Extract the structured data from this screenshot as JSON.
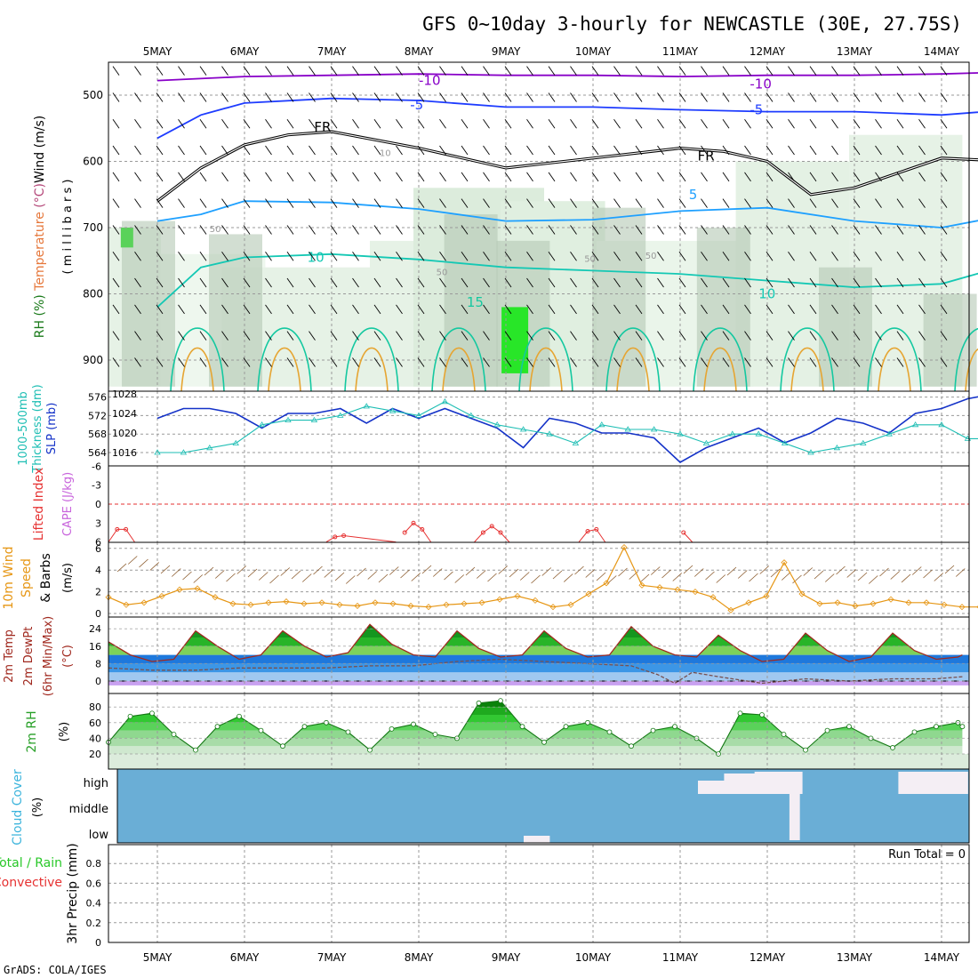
{
  "header": {
    "title": "GFS 0~10day 3-hourly for NEWCASTLE (30E, 27.75S)",
    "credit": "GrADS: COLA/IGES"
  },
  "dates": [
    "5MAY",
    "6MAY",
    "7MAY",
    "8MAY",
    "9MAY",
    "10MAY",
    "11MAY",
    "12MAY",
    "13MAY",
    "14MAY"
  ],
  "chart_data": [
    {
      "type": "heatmap",
      "panel": "cross-section",
      "ylabel_parts": [
        "RH (%)",
        "Temperature (°C)",
        "Wind (m/s)",
        "(millibars)"
      ],
      "yticks": [
        500,
        600,
        700,
        800,
        900
      ],
      "ylim": [
        940,
        450
      ],
      "contour_labels": [
        "-10",
        "-10",
        "-5",
        "-5",
        "FR",
        "FR",
        "5",
        "10",
        "15",
        "10",
        "10",
        "50",
        "50",
        "50",
        "50"
      ],
      "isotherms": [
        {
          "name": "-10",
          "color": "#8800c8",
          "x": [
            0,
            1,
            2,
            3,
            4,
            5,
            6,
            7,
            8,
            9,
            9.8
          ],
          "y": [
            478,
            472,
            470,
            468,
            470,
            470,
            472,
            470,
            470,
            468,
            465
          ]
        },
        {
          "name": "-5",
          "color": "#1e3cff",
          "x": [
            0,
            0.5,
            1,
            2,
            3,
            4,
            5,
            6,
            7,
            8,
            9,
            9.8
          ],
          "y": [
            565,
            530,
            512,
            505,
            508,
            518,
            518,
            522,
            525,
            525,
            530,
            522
          ]
        },
        {
          "name": "FR",
          "color": "#000000",
          "x": [
            0,
            0.5,
            1,
            1.5,
            2,
            3,
            4,
            5,
            6,
            6.5,
            7,
            7.5,
            8,
            9,
            9.8
          ],
          "y": [
            660,
            610,
            575,
            560,
            555,
            580,
            610,
            595,
            580,
            585,
            600,
            650,
            640,
            595,
            600
          ]
        },
        {
          "name": "5",
          "color": "#1ea0ff",
          "x": [
            0,
            0.5,
            1,
            2,
            3,
            4,
            5,
            6,
            7,
            8,
            9,
            9.8
          ],
          "y": [
            690,
            680,
            660,
            662,
            672,
            690,
            688,
            675,
            670,
            690,
            700,
            680
          ]
        },
        {
          "name": "10",
          "color": "#14c8b4",
          "x": [
            0,
            0.5,
            1,
            2,
            3,
            4,
            5,
            6,
            7,
            8,
            9,
            9.8
          ],
          "y": [
            820,
            760,
            745,
            740,
            748,
            760,
            765,
            770,
            780,
            790,
            785,
            755
          ]
        }
      ]
    },
    {
      "type": "line",
      "panel": "pressure",
      "ylabel_parts": [
        "1000-500mb",
        "Thickness (dm)",
        "SLP (mb)"
      ],
      "left_ticks": [
        564,
        568,
        572,
        576
      ],
      "right_ticks": [
        1016,
        1020,
        1024,
        1028
      ],
      "series": [
        {
          "name": "SLP",
          "color": "#1432c8",
          "x": [
            0,
            0.3,
            0.6,
            0.9,
            1.2,
            1.5,
            1.8,
            2.1,
            2.4,
            2.7,
            3.0,
            3.3,
            3.6,
            3.9,
            4.2,
            4.5,
            4.8,
            5.1,
            5.4,
            5.7,
            6.0,
            6.3,
            6.6,
            6.9,
            7.2,
            7.5,
            7.8,
            8.1,
            8.4,
            8.7,
            9.0,
            9.3,
            9.6,
            9.8
          ],
          "y": [
            1023,
            1025,
            1025,
            1024,
            1021,
            1024,
            1024,
            1025,
            1022,
            1025,
            1023,
            1025,
            1023,
            1021,
            1017,
            1023,
            1022,
            1020,
            1020,
            1019,
            1014,
            1017,
            1019,
            1021,
            1018,
            1020,
            1023,
            1022,
            1020,
            1024,
            1025,
            1027,
            1028,
            1028
          ]
        },
        {
          "name": "1000-500mb Thickness",
          "color": "#1ebeb4",
          "x": [
            0,
            0.3,
            0.6,
            0.9,
            1.2,
            1.5,
            1.8,
            2.1,
            2.4,
            2.7,
            3.0,
            3.3,
            3.6,
            3.9,
            4.2,
            4.5,
            4.8,
            5.1,
            5.4,
            5.7,
            6.0,
            6.3,
            6.6,
            6.9,
            7.2,
            7.5,
            7.8,
            8.1,
            8.4,
            8.7,
            9.0,
            9.3,
            9.6,
            9.8
          ],
          "y": [
            564,
            564,
            565,
            566,
            570,
            571,
            571,
            572,
            574,
            573,
            572,
            575,
            572,
            570,
            569,
            568,
            566,
            570,
            569,
            569,
            568,
            566,
            568,
            568,
            566,
            564,
            565,
            566,
            568,
            570,
            570,
            567,
            567,
            567
          ]
        }
      ]
    },
    {
      "type": "line",
      "panel": "cape-li",
      "ylabel_parts": [
        "Lifted Index",
        "CAPE (J/kg)"
      ],
      "left_ticks": [
        "-6",
        "-3",
        "0",
        "3",
        "6"
      ],
      "ylim": [
        -6,
        6
      ],
      "series": [
        {
          "name": "Lifted Index",
          "color": "#e63232",
          "x": [
            0,
            0.1,
            0.2,
            0.3,
            2.5,
            2.6,
            2.7,
            3.3,
            3.4,
            3.5,
            3.6,
            3.7,
            4.2,
            4.3,
            4.4,
            4.5,
            4.6,
            5.4,
            5.5,
            5.6,
            5.7,
            6.6,
            6.7
          ],
          "y": [
            6,
            4,
            4,
            6,
            6,
            5.2,
            5,
            6,
            4.5,
            3,
            4,
            6,
            6,
            4.5,
            3.5,
            4.5,
            6,
            6,
            4.3,
            4,
            6,
            4.5,
            6
          ]
        }
      ]
    },
    {
      "type": "line",
      "panel": "wind10m",
      "ylabel_parts": [
        "10m Wind",
        "Speed",
        "& Barbs",
        "(m/s)"
      ],
      "left_ticks": [
        0,
        2,
        4,
        6
      ],
      "ylim": [
        0,
        6.5
      ],
      "series": [
        {
          "name": "10m Wind Speed",
          "color": "#e69614",
          "x": [
            0,
            0.2,
            0.4,
            0.6,
            0.8,
            1.0,
            1.2,
            1.4,
            1.6,
            1.8,
            2.0,
            2.2,
            2.4,
            2.6,
            2.8,
            3.0,
            3.2,
            3.4,
            3.6,
            3.8,
            4.0,
            4.2,
            4.4,
            4.6,
            4.8,
            5.0,
            5.2,
            5.4,
            5.6,
            5.8,
            6.0,
            6.2,
            6.4,
            6.6,
            6.8,
            7.0,
            7.2,
            7.4,
            7.6,
            7.8,
            8.0,
            8.2,
            8.4,
            8.6,
            8.8,
            9.0,
            9.2,
            9.4,
            9.6,
            9.8
          ],
          "y": [
            1.5,
            0.8,
            1.0,
            1.6,
            2.2,
            2.3,
            1.5,
            0.9,
            0.8,
            1.0,
            1.1,
            0.9,
            1.0,
            0.8,
            0.7,
            1.0,
            0.9,
            0.7,
            0.6,
            0.8,
            0.9,
            1.0,
            1.3,
            1.6,
            1.2,
            0.6,
            0.8,
            1.8,
            2.8,
            6.1,
            2.6,
            2.4,
            2.2,
            2.0,
            1.5,
            0.3,
            1.0,
            1.6,
            4.7,
            1.8,
            0.9,
            1.0,
            0.7,
            0.9,
            1.3,
            1.0,
            1.0,
            0.8,
            0.6,
            0.6
          ]
        }
      ]
    },
    {
      "type": "area",
      "panel": "temperature",
      "ylabel_parts": [
        "2m Temp",
        "2m DewPt",
        "(6hr Min/Max)",
        "(°C)"
      ],
      "left_ticks": [
        0,
        8,
        16,
        24
      ],
      "ylim": [
        -2,
        28
      ],
      "series": [
        {
          "name": "2m Temp",
          "x": [
            0,
            0.25,
            0.5,
            0.75,
            1.0,
            1.25,
            1.5,
            1.75,
            2.0,
            2.25,
            2.5,
            2.75,
            3.0,
            3.25,
            3.5,
            3.75,
            4.0,
            4.25,
            4.5,
            4.75,
            5.0,
            5.25,
            5.5,
            5.75,
            6.0,
            6.25,
            6.5,
            6.75,
            7.0,
            7.25,
            7.5,
            7.75,
            8.0,
            8.25,
            8.5,
            8.75,
            9.0,
            9.25,
            9.5,
            9.75,
            9.8
          ],
          "y": [
            18,
            12,
            9,
            10,
            23,
            16,
            10,
            12,
            23,
            16,
            11,
            13,
            26,
            17,
            12,
            11,
            23,
            15,
            11,
            12,
            23,
            15,
            11,
            12,
            25,
            16,
            12,
            11,
            21,
            14,
            9,
            10,
            22,
            14,
            9,
            11,
            22,
            14,
            10,
            11,
            12
          ]
        },
        {
          "name": "2m DewPt",
          "x": [
            0,
            0.5,
            1,
            1.5,
            2,
            2.5,
            3,
            3.5,
            4,
            4.5,
            5,
            5.5,
            6,
            6.3,
            6.5,
            6.7,
            7,
            7.5,
            8,
            8.5,
            9,
            9.5,
            9.8
          ],
          "y": [
            6,
            5,
            5,
            6,
            6,
            6,
            7,
            7,
            9,
            10,
            9,
            8,
            7,
            3,
            -1,
            4,
            2,
            -1,
            1,
            0,
            1,
            1,
            2
          ]
        }
      ]
    },
    {
      "type": "area",
      "panel": "relative-humidity",
      "ylabel_parts": [
        "2m RH",
        "(%)"
      ],
      "left_ticks": [
        20,
        40,
        60,
        80
      ],
      "ylim": [
        10,
        95
      ],
      "series": [
        {
          "name": "2m RH",
          "x": [
            0,
            0.25,
            0.5,
            0.75,
            1.0,
            1.25,
            1.5,
            1.75,
            2.0,
            2.25,
            2.5,
            2.75,
            3.0,
            3.25,
            3.5,
            3.75,
            4.0,
            4.25,
            4.5,
            4.75,
            5.0,
            5.25,
            5.5,
            5.75,
            6.0,
            6.25,
            6.5,
            6.75,
            7.0,
            7.25,
            7.5,
            7.75,
            8.0,
            8.25,
            8.5,
            8.75,
            9.0,
            9.25,
            9.5,
            9.75,
            9.8
          ],
          "y": [
            35,
            68,
            72,
            45,
            25,
            55,
            68,
            50,
            30,
            55,
            60,
            48,
            25,
            52,
            58,
            45,
            40,
            85,
            88,
            55,
            35,
            55,
            60,
            48,
            30,
            50,
            55,
            40,
            20,
            72,
            70,
            45,
            25,
            50,
            55,
            40,
            28,
            48,
            55,
            60,
            55
          ]
        }
      ]
    },
    {
      "type": "bar",
      "panel": "cloud-cover",
      "ylabel_parts": [
        "Cloud Cover",
        "(%)"
      ],
      "level_labels": [
        "high",
        "middle",
        "low"
      ]
    },
    {
      "type": "bar",
      "panel": "precipitation",
      "ylabel_parts": [
        "Total / Rain",
        "Convective",
        "3hr Precip (mm)"
      ],
      "left_ticks": [
        "0",
        "0.2",
        "0.4",
        "0.6",
        "0.8"
      ],
      "ylim": [
        0,
        0.95
      ],
      "run_total": "Run Total = 0",
      "values": []
    }
  ]
}
